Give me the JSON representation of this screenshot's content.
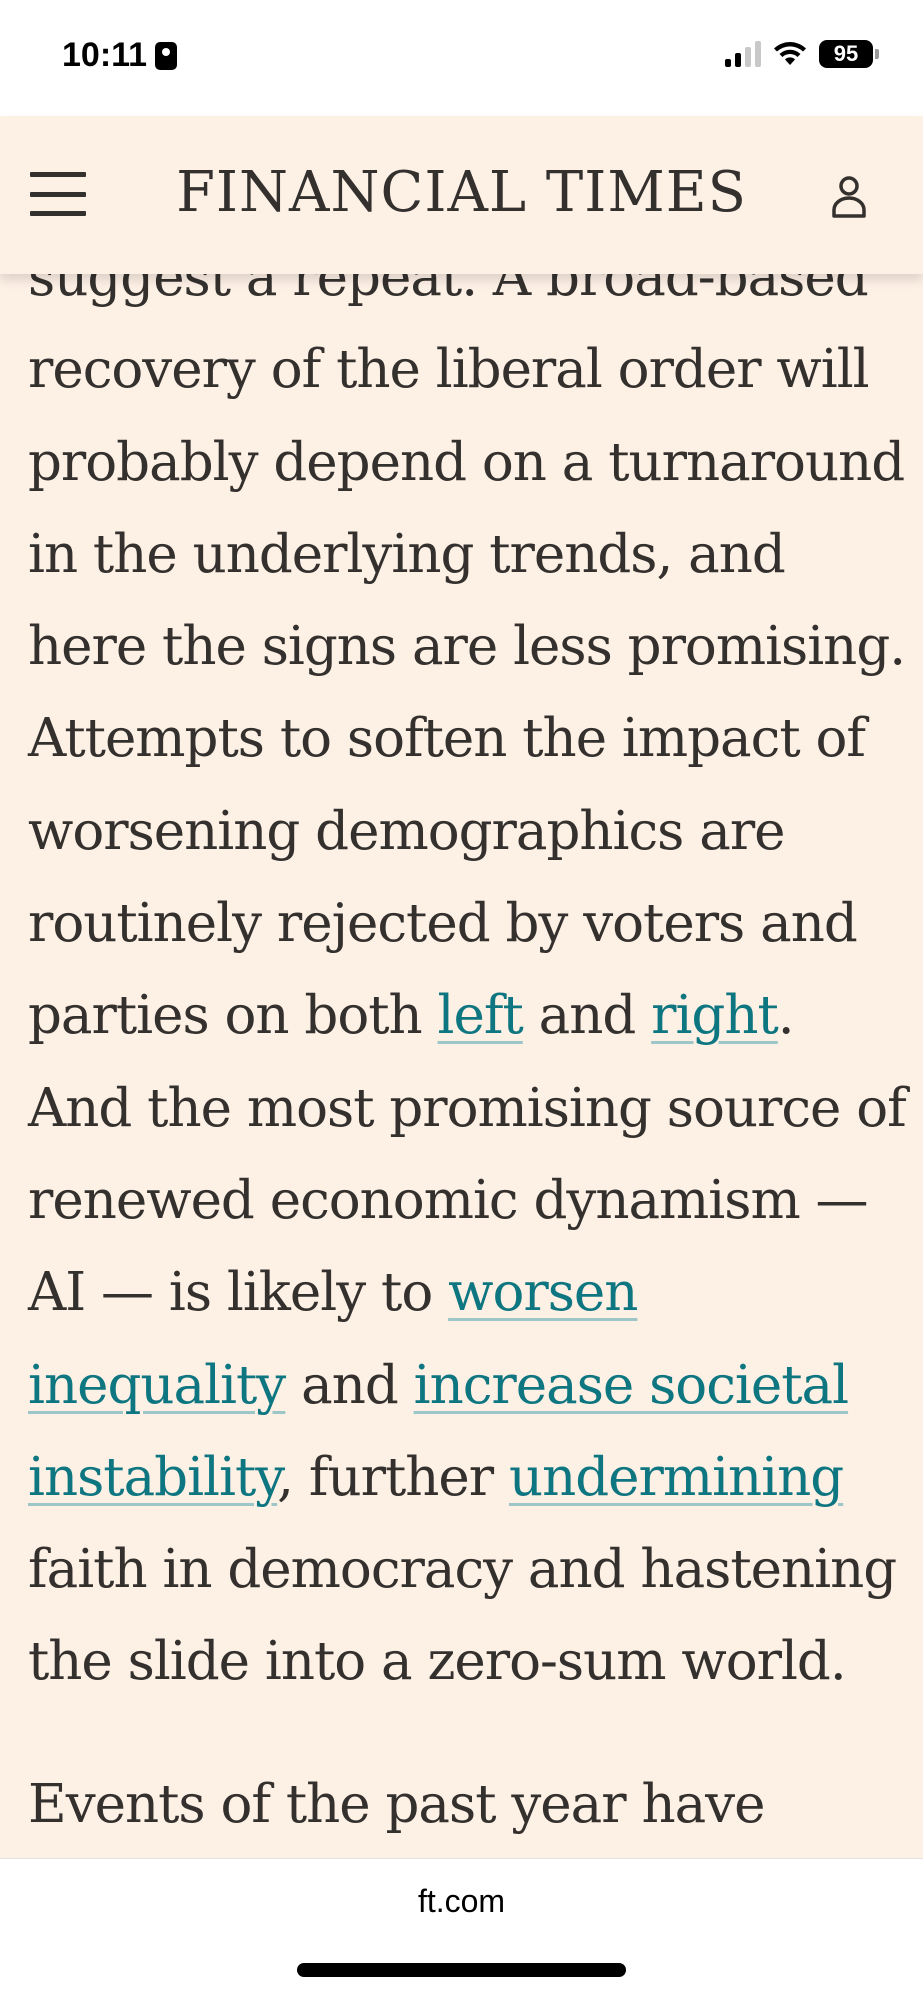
{
  "status_bar": {
    "time": "10:11",
    "battery": "95",
    "icons": [
      "id-badge-icon",
      "signal-icon",
      "wifi-icon",
      "battery-icon"
    ]
  },
  "header": {
    "masthead": "FINANCIAL TIMES",
    "icons": [
      "hamburger-menu-icon",
      "account-icon"
    ],
    "text_color": "#33302e",
    "background": "#fdf0e5"
  },
  "article": {
    "paragraph_1": {
      "t1": "suggest a repeat. A broad-based recovery of the liberal order will probably depend on a turnaround in the underlying trends, and here the signs are less promising. Attempts to soften the impact of worsening demographics are routinely rejected by voters and parties on both ",
      "link_left": "left",
      "t2": " and ",
      "link_right": "right",
      "t3": ". And the most promising source of renewed economic dynamism — AI — is likely to ",
      "link_worsen": "worsen inequality",
      "t4": " and ",
      "link_increase": "increase societal instability",
      "t5": ", further ",
      "link_undermining": "undermining",
      "t6": " faith in democracy and hastening the slide into a zero-sum world."
    },
    "paragraph_2_partial": "Events of the past year have",
    "link_color": "#0d7680"
  },
  "browser": {
    "url": "ft.com"
  }
}
